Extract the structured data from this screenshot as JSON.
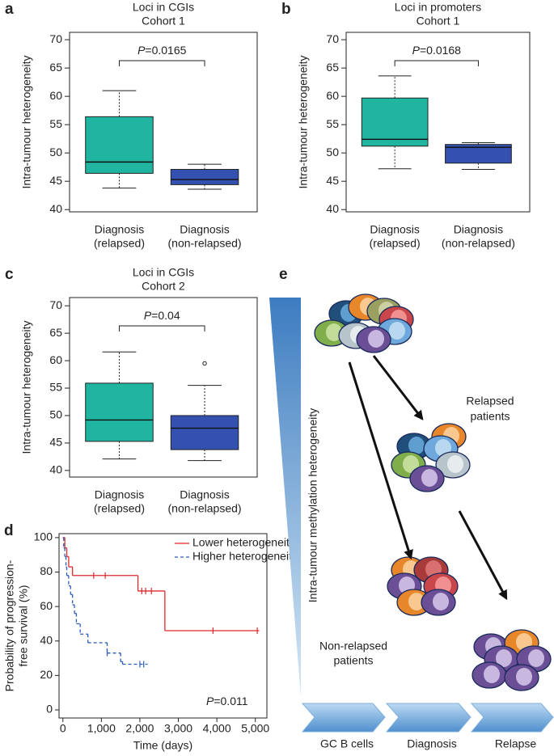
{
  "chart_data": [
    {
      "type": "box",
      "label": "a",
      "title": "Loci in CGIs",
      "subtitle": "Cohort 1",
      "ylabel": "Intra-tumour heterogeneity",
      "categories": [
        [
          "Diagnosis",
          "(relapsed)"
        ],
        [
          "Diagnosis",
          "(non-relapsed)"
        ]
      ],
      "colors": [
        "#20b5a0",
        "#3450b0"
      ],
      "boxes": [
        {
          "whislo": 43.8,
          "q1": 46.4,
          "med": 48.4,
          "q3": 56.4,
          "whishi": 61.0,
          "fliers": []
        },
        {
          "whislo": 43.6,
          "q1": 44.4,
          "med": 45.3,
          "q3": 47.1,
          "whishi": 48.0,
          "fliers": []
        }
      ],
      "annotation": {
        "italic": "P",
        "text": "=0.0165"
      },
      "ylim": [
        39.6,
        71.3
      ],
      "yticks": [
        40,
        45,
        50,
        55,
        60,
        65,
        70
      ]
    },
    {
      "type": "box",
      "label": "b",
      "title": "Loci in promoters",
      "subtitle": "Cohort 1",
      "ylabel": "Intra-tumour heterogeneity",
      "categories": [
        [
          "Diagnosis",
          "(relapsed)"
        ],
        [
          "Diagnosis",
          "(non-relapsed)"
        ]
      ],
      "colors": [
        "#20b5a0",
        "#3450b0"
      ],
      "boxes": [
        {
          "whislo": 47.2,
          "q1": 51.2,
          "med": 52.4,
          "q3": 59.7,
          "whishi": 63.6,
          "fliers": []
        },
        {
          "whislo": 47.1,
          "q1": 48.2,
          "med": 51.0,
          "q3": 51.5,
          "whishi": 51.8,
          "fliers": []
        }
      ],
      "annotation": {
        "italic": "P",
        "text": "=0.0168"
      },
      "ylim": [
        39.6,
        71.3
      ],
      "yticks": [
        40,
        45,
        50,
        55,
        60,
        65,
        70
      ]
    },
    {
      "type": "box",
      "label": "c",
      "title": "Loci in CGIs",
      "subtitle": "Cohort 2",
      "ylabel": "Intra-tumour heterogeneity",
      "categories": [
        [
          "Diagnosis",
          "(relapsed)"
        ],
        [
          "Diagnosis",
          "(non-relapsed)"
        ]
      ],
      "colors": [
        "#20b5a0",
        "#3450b0"
      ],
      "boxes": [
        {
          "whislo": 42.1,
          "q1": 45.3,
          "med": 49.2,
          "q3": 55.9,
          "whishi": 61.6,
          "fliers": []
        },
        {
          "whislo": 41.8,
          "q1": 43.8,
          "med": 47.7,
          "q3": 50.0,
          "whishi": 55.5,
          "fliers": [
            59.5
          ]
        }
      ],
      "annotation": {
        "italic": "P",
        "text": "=0.04"
      },
      "ylim": [
        38.8,
        71.5
      ],
      "yticks": [
        40,
        45,
        50,
        55,
        60,
        65,
        70
      ]
    },
    {
      "type": "survival",
      "label": "d",
      "ylabel": [
        "Probability of progression-",
        "free survival (%)"
      ],
      "xlabel": "Time (days)",
      "series": [
        {
          "name": "Lower heterogeneity",
          "color": "#e0282e",
          "dashed": false,
          "x": [
            0,
            50,
            100,
            150,
            250,
            1950,
            2650,
            5100
          ],
          "values": [
            100,
            94,
            89,
            83,
            78,
            69,
            46,
            46
          ],
          "censored_x": [
            800,
            1100,
            2050,
            2150,
            2300,
            3900,
            5050
          ],
          "censored_values": [
            78,
            78,
            69,
            69,
            69,
            46,
            46
          ]
        },
        {
          "name": "Higher heterogeneity",
          "color": "#2a5cb8",
          "dashed": true,
          "x": [
            0,
            20,
            50,
            80,
            100,
            150,
            200,
            250,
            300,
            350,
            450,
            650,
            1150,
            1500,
            1550,
            2200
          ],
          "values": [
            100,
            94,
            89,
            83,
            78,
            72,
            67,
            61,
            56,
            50,
            44,
            39,
            33,
            28,
            26.5,
            26.5
          ],
          "censored_x": [
            1150,
            2000,
            2100
          ],
          "censored_values": [
            33,
            26.5,
            26.5
          ]
        }
      ],
      "annotation": {
        "italic": "P",
        "text": "=0.011"
      },
      "legend": "upper right",
      "xlim": [
        -100,
        5300
      ],
      "xticks": [
        0,
        {
          "value": 1000,
          "label": "1,000"
        },
        {
          "value": 2000,
          "label": "2,000"
        },
        {
          "value": 3000,
          "label": "3,000"
        },
        {
          "value": 4000,
          "label": "4,000"
        },
        {
          "value": 5000,
          "label": "5,000"
        }
      ],
      "ylim": [
        -4.7,
        102.3
      ],
      "yticks": [
        0,
        20,
        40,
        60,
        80,
        100
      ]
    }
  ],
  "diagram": {
    "label": "e",
    "axis_label": "Intra-tumour methylation heterogeneity",
    "relapsed": [
      "Relapsed",
      "patients"
    ],
    "non_relapsed": [
      "Non-relapsed",
      "patients"
    ],
    "stages": [
      "GC B cells",
      "Diagnosis",
      "Relapse"
    ]
  }
}
